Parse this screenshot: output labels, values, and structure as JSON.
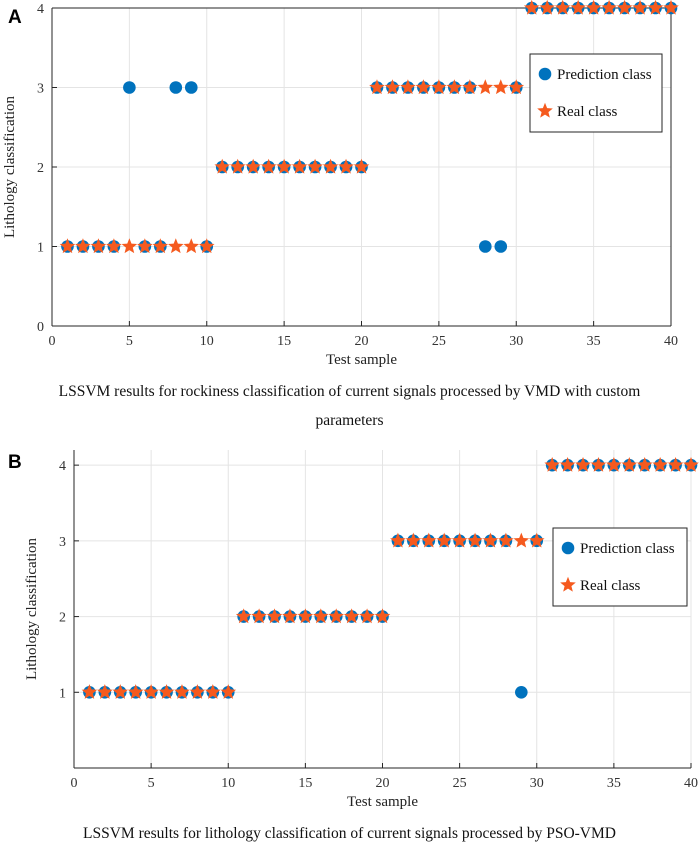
{
  "chart_data": [
    {
      "type": "scatter",
      "panel": "A",
      "title": "",
      "xlabel": "Test sample",
      "ylabel": "Lithology classification",
      "xlim": [
        0,
        40
      ],
      "ylim": [
        0,
        4
      ],
      "xticks": [
        0,
        5,
        10,
        15,
        20,
        25,
        30,
        35,
        40
      ],
      "yticks": [
        0,
        1,
        2,
        3,
        4
      ],
      "grid": true,
      "legend_position": "upper-right",
      "caption_lines": [
        "LSSVM results for rockiness classification of current signals processed by VMD with custom",
        "parameters"
      ],
      "series": [
        {
          "name": "Prediction class",
          "marker": "circle",
          "color": "#0072BD",
          "x": [
            1,
            2,
            3,
            4,
            5,
            6,
            7,
            8,
            9,
            10,
            11,
            12,
            13,
            14,
            15,
            16,
            17,
            18,
            19,
            20,
            21,
            22,
            23,
            24,
            25,
            26,
            27,
            28,
            29,
            30,
            31,
            32,
            33,
            34,
            35,
            36,
            37,
            38,
            39,
            40
          ],
          "y": [
            1,
            1,
            1,
            1,
            3,
            1,
            1,
            3,
            3,
            1,
            2,
            2,
            2,
            2,
            2,
            2,
            2,
            2,
            2,
            2,
            3,
            3,
            3,
            3,
            3,
            3,
            3,
            1,
            1,
            3,
            4,
            4,
            4,
            4,
            4,
            4,
            4,
            4,
            4,
            4
          ]
        },
        {
          "name": "Real class",
          "marker": "star",
          "color": "#F55A1E",
          "x": [
            1,
            2,
            3,
            4,
            5,
            6,
            7,
            8,
            9,
            10,
            11,
            12,
            13,
            14,
            15,
            16,
            17,
            18,
            19,
            20,
            21,
            22,
            23,
            24,
            25,
            26,
            27,
            28,
            29,
            30,
            31,
            32,
            33,
            34,
            35,
            36,
            37,
            38,
            39,
            40
          ],
          "y": [
            1,
            1,
            1,
            1,
            1,
            1,
            1,
            1,
            1,
            1,
            2,
            2,
            2,
            2,
            2,
            2,
            2,
            2,
            2,
            2,
            3,
            3,
            3,
            3,
            3,
            3,
            3,
            3,
            3,
            3,
            4,
            4,
            4,
            4,
            4,
            4,
            4,
            4,
            4,
            4
          ]
        }
      ]
    },
    {
      "type": "scatter",
      "panel": "B",
      "title": "",
      "xlabel": "Test sample",
      "ylabel": "Lithology classification",
      "xlim": [
        0,
        40
      ],
      "ylim": [
        0,
        4.2
      ],
      "xticks": [
        0,
        5,
        10,
        15,
        20,
        25,
        30,
        35,
        40
      ],
      "yticks": [
        1,
        2,
        3,
        4
      ],
      "grid": true,
      "legend_position": "right",
      "caption_lines": [
        "LSSVM results for lithology classification of current signals processed by PSO-VMD"
      ],
      "series": [
        {
          "name": "Prediction class",
          "marker": "circle",
          "color": "#0072BD",
          "x": [
            1,
            2,
            3,
            4,
            5,
            6,
            7,
            8,
            9,
            10,
            11,
            12,
            13,
            14,
            15,
            16,
            17,
            18,
            19,
            20,
            21,
            22,
            23,
            24,
            25,
            26,
            27,
            28,
            29,
            30,
            31,
            32,
            33,
            34,
            35,
            36,
            37,
            38,
            39,
            40
          ],
          "y": [
            1,
            1,
            1,
            1,
            1,
            1,
            1,
            1,
            1,
            1,
            2,
            2,
            2,
            2,
            2,
            2,
            2,
            2,
            2,
            2,
            3,
            3,
            3,
            3,
            3,
            3,
            3,
            3,
            1,
            3,
            4,
            4,
            4,
            4,
            4,
            4,
            4,
            4,
            4,
            4
          ]
        },
        {
          "name": "Real class",
          "marker": "star",
          "color": "#F55A1E",
          "x": [
            1,
            2,
            3,
            4,
            5,
            6,
            7,
            8,
            9,
            10,
            11,
            12,
            13,
            14,
            15,
            16,
            17,
            18,
            19,
            20,
            21,
            22,
            23,
            24,
            25,
            26,
            27,
            28,
            29,
            30,
            31,
            32,
            33,
            34,
            35,
            36,
            37,
            38,
            39,
            40
          ],
          "y": [
            1,
            1,
            1,
            1,
            1,
            1,
            1,
            1,
            1,
            1,
            2,
            2,
            2,
            2,
            2,
            2,
            2,
            2,
            2,
            2,
            3,
            3,
            3,
            3,
            3,
            3,
            3,
            3,
            3,
            3,
            4,
            4,
            4,
            4,
            4,
            4,
            4,
            4,
            4,
            4
          ]
        }
      ]
    }
  ]
}
